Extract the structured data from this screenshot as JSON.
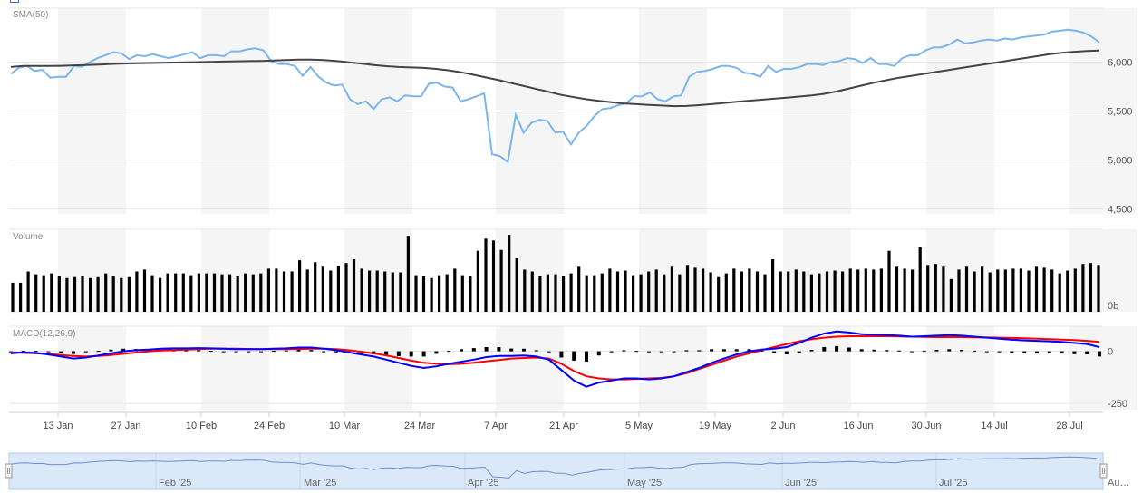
{
  "chart_data": {
    "type": "line",
    "panes": {
      "price": {
        "label": "SMA(50)",
        "yticks": [
          "6,000",
          "5,500",
          "5,000",
          "4,500"
        ],
        "yvals": [
          6000,
          5500,
          5000,
          4500
        ],
        "ylim": [
          4450,
          6550
        ]
      },
      "volume": {
        "label": "Volume",
        "yticks": [
          "0b"
        ],
        "yvals": [
          0
        ]
      },
      "macd": {
        "label": "MACD(12,26,9)",
        "yticks": [
          "0",
          "-250"
        ],
        "yvals": [
          0,
          -250
        ],
        "ylim": [
          -280,
          120
        ]
      }
    },
    "x_ticks": [
      "13 Jan",
      "27 Jan",
      "10 Feb",
      "24 Feb",
      "10 Mar",
      "24 Mar",
      "7 Apr",
      "21 Apr",
      "5 May",
      "19 May",
      "2 Jun",
      "16 Jun",
      "30 Jun",
      "14 Jul",
      "28 Jul"
    ],
    "navigator_labels": [
      "Feb '25",
      "Mar '25",
      "Apr '25",
      "May '25",
      "Jun '25",
      "Jul '25",
      "Au…"
    ],
    "colors": {
      "price": "#7cb5ec",
      "sma": "#434348",
      "macd": "#0000ff",
      "signal": "#ff0000",
      "histogram": "#000000",
      "volume": "#000000",
      "band": "#f5f5f5",
      "navigator_fill": "#dbe8f8",
      "navigator_line": "#6f8fc7"
    },
    "price": [
      5880,
      5940,
      5960,
      5910,
      5920,
      5840,
      5850,
      5850,
      5960,
      5950,
      6000,
      6040,
      6070,
      6100,
      6090,
      6030,
      6070,
      6060,
      6080,
      6060,
      6040,
      6060,
      6080,
      6100,
      6040,
      6070,
      6070,
      6060,
      6110,
      6110,
      6130,
      6140,
      6120,
      6010,
      5980,
      5980,
      5960,
      5860,
      5950,
      5850,
      5790,
      5760,
      5770,
      5620,
      5570,
      5600,
      5520,
      5620,
      5640,
      5600,
      5660,
      5650,
      5650,
      5780,
      5790,
      5750,
      5740,
      5600,
      5620,
      5650,
      5680,
      5060,
      5040,
      4980,
      5460,
      5280,
      5380,
      5410,
      5400,
      5280,
      5290,
      5160,
      5280,
      5350,
      5450,
      5520,
      5530,
      5560,
      5580,
      5650,
      5650,
      5690,
      5620,
      5600,
      5650,
      5660,
      5850,
      5900,
      5910,
      5930,
      5960,
      5960,
      5940,
      5890,
      5880,
      5850,
      5960,
      5900,
      5930,
      5930,
      5950,
      5980,
      5980,
      5970,
      6000,
      6010,
      6040,
      6030,
      5990,
      6040,
      5980,
      5980,
      5960,
      6040,
      6070,
      6070,
      6120,
      6150,
      6150,
      6180,
      6230,
      6190,
      6200,
      6220,
      6230,
      6220,
      6240,
      6230,
      6250,
      6260,
      6270,
      6280,
      6310,
      6320,
      6330,
      6320,
      6300,
      6260,
      6200
    ],
    "sma50": [
      5950,
      5960,
      5960,
      5960,
      5962,
      5966,
      5970,
      5975,
      5980,
      5985,
      5988,
      5990,
      5992,
      5995,
      5998,
      6000,
      6002,
      6005,
      6008,
      6010,
      6012,
      6015,
      6020,
      6025,
      6025,
      6020,
      6012,
      5998,
      5985,
      5970,
      5958,
      5950,
      5945,
      5940,
      5930,
      5915,
      5895,
      5870,
      5842,
      5815,
      5785,
      5755,
      5725,
      5695,
      5665,
      5642,
      5620,
      5604,
      5590,
      5578,
      5570,
      5562,
      5556,
      5550,
      5552,
      5560,
      5570,
      5582,
      5595,
      5605,
      5616,
      5626,
      5636,
      5648,
      5660,
      5676,
      5700,
      5730,
      5760,
      5790,
      5815,
      5840,
      5860,
      5880,
      5900,
      5920,
      5940,
      5960,
      5980,
      6000,
      6020,
      6040,
      6060,
      6080,
      6095,
      6105,
      6112,
      6118
    ],
    "volume": [
      3.1,
      3.1,
      4.3,
      4.0,
      3.9,
      4.1,
      3.8,
      3.6,
      3.7,
      3.8,
      3.6,
      3.7,
      4.1,
      3.8,
      3.6,
      3.7,
      4.3,
      4.5,
      3.9,
      3.6,
      4.1,
      4.1,
      4.1,
      3.9,
      4.1,
      4.1,
      4.1,
      4.0,
      4.0,
      3.8,
      4.1,
      4.0,
      4.1,
      4.6,
      4.6,
      4.3,
      4.3,
      5.5,
      4.5,
      5.3,
      4.8,
      4.4,
      4.9,
      5.2,
      5.6,
      4.6,
      4.4,
      4.4,
      4.3,
      4.2,
      4.2,
      8.1,
      3.9,
      3.8,
      3.6,
      3.9,
      4.0,
      4.6,
      3.9,
      3.8,
      6.5,
      7.8,
      7.6,
      6.6,
      8.2,
      5.7,
      4.5,
      4.3,
      3.8,
      4.0,
      4.0,
      3.8,
      4.1,
      4.8,
      3.9,
      3.9,
      4.1,
      4.6,
      4.3,
      4.4,
      3.9,
      4.0,
      4.3,
      4.5,
      4.0,
      4.8,
      4.0,
      5.0,
      4.7,
      4.6,
      4.2,
      3.7,
      4.1,
      4.6,
      4.3,
      4.6,
      4.3,
      4.0,
      5.6,
      4.3,
      4.3,
      4.5,
      4.3,
      4.0,
      4.1,
      4.3,
      4.4,
      4.3,
      4.6,
      4.5,
      4.6,
      4.5,
      4.6,
      6.5,
      4.8,
      4.6,
      4.5,
      6.9,
      5.0,
      5.1,
      4.8,
      3.5,
      4.5,
      4.8,
      4.3,
      4.8,
      4.2,
      4.5,
      4.5,
      4.6,
      4.6,
      4.4,
      4.8,
      4.7,
      4.5,
      4.1,
      4.4,
      4.6,
      5.1,
      5.2,
      5.0
    ],
    "macd": [
      -10,
      -5,
      -8,
      -15,
      -25,
      -35,
      -30,
      -20,
      -10,
      0,
      5,
      8,
      12,
      14,
      14,
      15,
      14,
      12,
      10,
      10,
      10,
      12,
      14,
      18,
      18,
      12,
      5,
      -5,
      -15,
      -25,
      -40,
      -55,
      -70,
      -80,
      -72,
      -60,
      -50,
      -40,
      -28,
      -22,
      -22,
      -20,
      -25,
      -40,
      -90,
      -140,
      -170,
      -150,
      -140,
      -130,
      -130,
      -135,
      -130,
      -120,
      -100,
      -80,
      -55,
      -35,
      -15,
      0,
      8,
      12,
      20,
      40,
      65,
      85,
      95,
      90,
      82,
      80,
      78,
      75,
      70,
      72,
      75,
      78,
      75,
      70,
      65,
      60,
      55,
      52,
      50,
      48,
      45,
      40,
      35,
      20
    ],
    "signal": [
      -5,
      -8,
      -10,
      -12,
      -18,
      -22,
      -25,
      -22,
      -18,
      -12,
      -6,
      0,
      4,
      6,
      8,
      10,
      12,
      12,
      12,
      11,
      10,
      10,
      10,
      11,
      12,
      12,
      10,
      5,
      -2,
      -10,
      -20,
      -32,
      -45,
      -55,
      -60,
      -62,
      -60,
      -55,
      -48,
      -42,
      -35,
      -32,
      -30,
      -35,
      -60,
      -95,
      -120,
      -130,
      -135,
      -135,
      -132,
      -130,
      -128,
      -120,
      -105,
      -85,
      -65,
      -45,
      -25,
      -10,
      5,
      20,
      35,
      48,
      58,
      65,
      70,
      72,
      72,
      72,
      72,
      71,
      70,
      69,
      68,
      68,
      68,
      67,
      66,
      65,
      64,
      62,
      60,
      58,
      56,
      54,
      50,
      45
    ],
    "hist": [
      -5,
      3,
      2,
      -3,
      -7,
      -13,
      -5,
      2,
      8,
      12,
      11,
      8,
      8,
      8,
      6,
      5,
      2,
      0,
      -2,
      -1,
      0,
      2,
      4,
      7,
      6,
      0,
      -5,
      -10,
      -13,
      -15,
      -20,
      -23,
      -25,
      -25,
      -12,
      2,
      10,
      15,
      20,
      20,
      13,
      12,
      5,
      -5,
      -30,
      -45,
      -50,
      -20,
      -5,
      5,
      2,
      -5,
      -2,
      0,
      5,
      5,
      10,
      10,
      10,
      10,
      3,
      -8,
      -15,
      -8,
      7,
      20,
      25,
      18,
      10,
      8,
      6,
      4,
      0,
      3,
      7,
      10,
      7,
      3,
      -1,
      -5,
      -9,
      -10,
      -10,
      -10,
      -11,
      -14,
      -15,
      -25
    ]
  }
}
